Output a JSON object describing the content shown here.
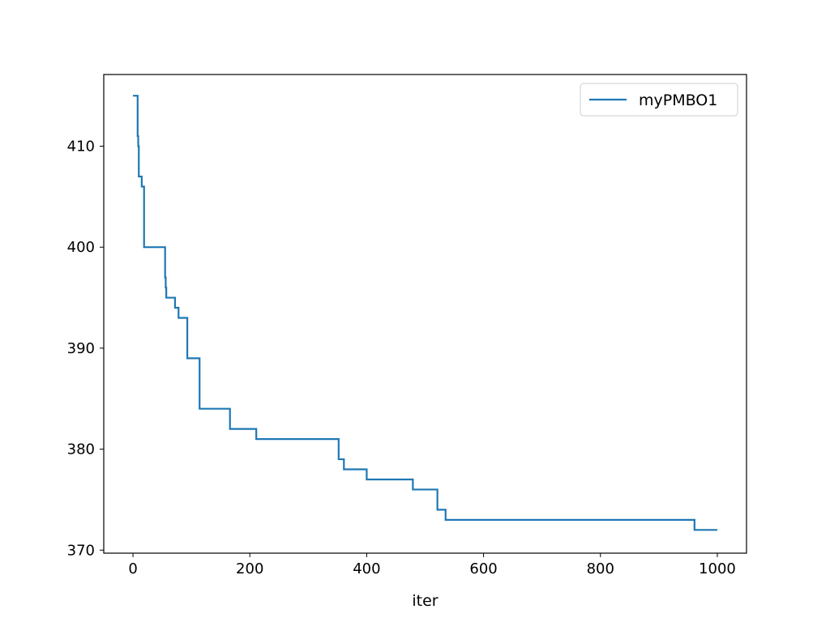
{
  "chart_data": {
    "type": "line",
    "title": "",
    "xlabel": "iter",
    "ylabel": "",
    "xlim": [
      -50,
      1050
    ],
    "ylim": [
      369.7,
      417.1
    ],
    "x_ticks": [
      0,
      200,
      400,
      600,
      800,
      1000
    ],
    "y_ticks": [
      370,
      380,
      390,
      400,
      410
    ],
    "grid": false,
    "legend_position": "upper right",
    "series": [
      {
        "name": "myPMBO1",
        "color": "#1f77b4",
        "step": "post",
        "x": [
          0,
          8,
          9,
          10,
          15,
          17,
          19,
          55,
          56,
          57,
          72,
          75,
          78,
          93,
          114,
          166,
          211,
          352,
          361,
          400,
          479,
          521,
          535,
          961,
          1000
        ],
        "y": [
          415,
          411,
          410,
          407,
          406,
          406,
          400,
          397,
          396,
          395,
          394,
          394,
          393,
          389,
          384,
          382,
          381,
          379,
          378,
          377,
          376,
          374,
          373,
          372,
          372
        ]
      }
    ]
  }
}
